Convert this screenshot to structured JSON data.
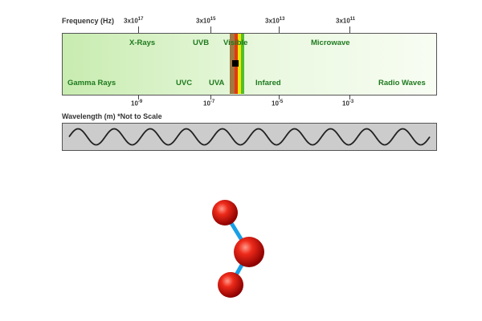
{
  "spectrum": {
    "frequency_label": "Frequency (Hz)",
    "frequency_ticks": [
      {
        "base": "3x10",
        "exp": "17"
      },
      {
        "base": "3x10",
        "exp": "15"
      },
      {
        "base": "3x10",
        "exp": "13"
      },
      {
        "base": "3x10",
        "exp": "11"
      }
    ],
    "top_regions": [
      "X-Rays",
      "UVB",
      "Visible",
      "Microwave"
    ],
    "bottom_regions": [
      "Gamma Rays",
      "UVC",
      "UVA",
      "Infared",
      "Radio Waves"
    ],
    "wavelength_ticks": [
      {
        "base": "10",
        "exp": "-9"
      },
      {
        "base": "10",
        "exp": "-7"
      },
      {
        "base": "10",
        "exp": "-5"
      },
      {
        "base": "10",
        "exp": "-3"
      }
    ],
    "wavelength_label": "Wavelength (m) *Not to Scale"
  },
  "colors": {
    "band_green": "#c8ecb0",
    "region_text": "#1f7a1f",
    "visible_brown": "#a07840",
    "visible_red": "#e03a10",
    "visible_yellow": "#f3e600",
    "visible_green": "#4fbf2f",
    "wave_fill": "#cccccc",
    "bond": "#1a9fe6",
    "atom": "#e31010"
  },
  "molecule": {
    "atoms": 3,
    "bonds": 2
  }
}
